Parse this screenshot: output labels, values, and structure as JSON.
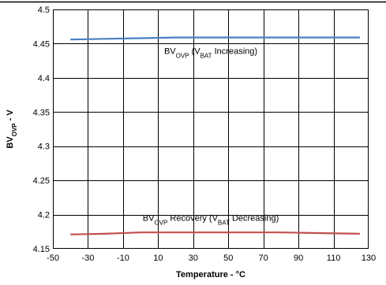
{
  "chart_data": {
    "type": "line",
    "title": "",
    "xlabel": "Temperature - °C",
    "ylabel": {
      "pre": "BV",
      "sub": "OVP",
      "post": " - V"
    },
    "xlim": [
      -50,
      130
    ],
    "ylim": [
      4.15,
      4.5
    ],
    "x_ticks": [
      -50,
      -30,
      -10,
      10,
      30,
      50,
      70,
      90,
      110,
      130
    ],
    "y_ticks": [
      4.15,
      4.2,
      4.25,
      4.3,
      4.35,
      4.4,
      4.45,
      4.5
    ],
    "y_tick_labels": [
      "4.15",
      "4.2",
      "4.25",
      "4.3",
      "4.35",
      "4.4",
      "4.45",
      "4.5"
    ],
    "x_grid": [
      -30,
      -10,
      10,
      30,
      50,
      70,
      90,
      110
    ],
    "y_grid": [
      4.2,
      4.25,
      4.3,
      4.35,
      4.4,
      4.45
    ],
    "grid": true,
    "series": [
      {
        "color": "#4a7fc1",
        "x": [
          -40,
          -20,
          0,
          20,
          40,
          60,
          80,
          100,
          125
        ],
        "values": [
          4.456,
          4.457,
          4.458,
          4.459,
          4.459,
          4.459,
          4.459,
          4.459,
          4.459
        ]
      },
      {
        "color": "#c0504d",
        "x": [
          -40,
          -20,
          0,
          20,
          40,
          60,
          80,
          100,
          125
        ],
        "values": [
          4.171,
          4.172,
          4.174,
          4.174,
          4.174,
          4.174,
          4.174,
          4.173,
          4.172
        ]
      }
    ],
    "annotations": [
      {
        "parts": [
          {
            "t": "BV",
            "s": "normal"
          },
          {
            "t": "OVP",
            "s": "sub"
          },
          {
            "t": " (V",
            "s": "normal"
          },
          {
            "t": "BAT",
            "s": "sub"
          },
          {
            "t": " Increasing)",
            "s": "normal"
          }
        ],
        "x": 40,
        "y": 4.435
      },
      {
        "parts": [
          {
            "t": "BV",
            "s": "normal"
          },
          {
            "t": "OVP",
            "s": "sub"
          },
          {
            "t": " Recovery (V",
            "s": "normal"
          },
          {
            "t": "BAT",
            "s": "sub"
          },
          {
            "t": " Decreasing)",
            "s": "normal"
          }
        ],
        "x": 40,
        "y": 4.191
      }
    ]
  }
}
